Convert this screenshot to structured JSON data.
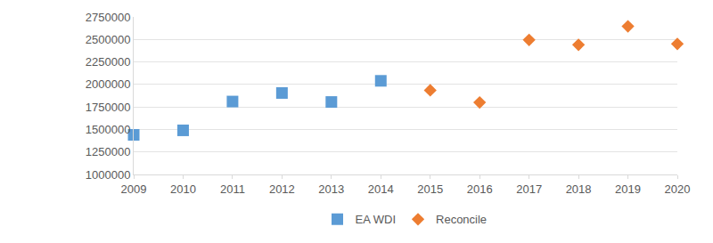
{
  "chart_data": {
    "type": "scatter",
    "series": [
      {
        "name": "EA WDI",
        "color": "#5b9bd5",
        "marker": "square",
        "x": [
          2009,
          2010,
          2011,
          2012,
          2013,
          2014
        ],
        "values": [
          1440000,
          1490000,
          1810000,
          1905000,
          1805000,
          2040000
        ]
      },
      {
        "name": "Reconcile",
        "color": "#ed7d31",
        "marker": "diamond",
        "x": [
          2015,
          2016,
          2017,
          2018,
          2019,
          2020
        ],
        "values": [
          1935000,
          1800000,
          2495000,
          2440000,
          2645000,
          2450000
        ]
      }
    ],
    "xlim": [
      2009,
      2020
    ],
    "xticks": [
      2009,
      2010,
      2011,
      2012,
      2013,
      2014,
      2015,
      2016,
      2017,
      2018,
      2019,
      2020
    ],
    "ylim": [
      1000000,
      2750000
    ],
    "yticks": [
      1000000,
      1250000,
      1500000,
      1750000,
      2000000,
      2250000,
      2500000,
      2750000
    ],
    "grid": true,
    "legend": "bottom"
  }
}
